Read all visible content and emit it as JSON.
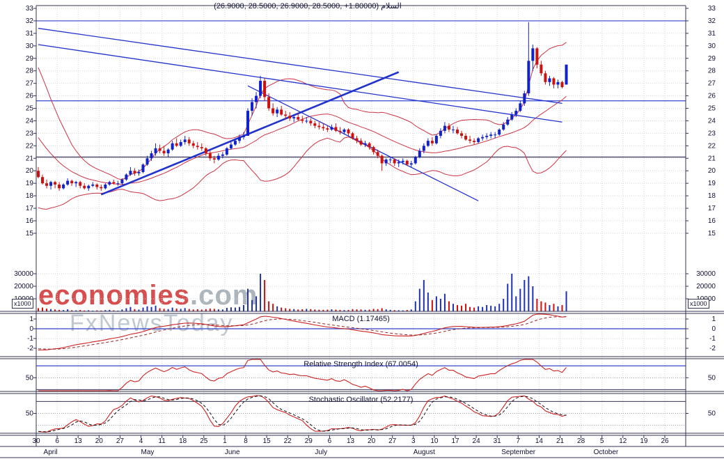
{
  "title": "(26.9000, 28.5000, 26.9000, 28.5000, +1.80000) السلام",
  "watermark": {
    "brand": "economies",
    "domain": ".com",
    "tagline": "FxNewsToday"
  },
  "panels": {
    "macd": {
      "title": "MACD (1.17465)"
    },
    "rsi": {
      "title": "Relative Strength Index (67.0054)"
    },
    "stochastic": {
      "title": "Stochastic Oscillator (52.2177)"
    }
  },
  "chart_data": {
    "type": "candlestick",
    "last_quote": {
      "open": 26.9,
      "high": 28.5,
      "low": 26.9,
      "close": 28.5,
      "change": "+1.80000"
    },
    "axes": {
      "price_ticks": [
        33,
        32,
        31,
        30,
        29,
        28,
        27,
        26,
        25,
        24,
        23,
        22,
        21,
        20,
        19,
        18,
        17,
        16,
        15
      ],
      "volume_ticks": [
        30000,
        20000,
        10000
      ],
      "volume_scale_label": "x1000",
      "macd_ticks": [
        1,
        0,
        -1,
        -2
      ],
      "rsi_mid_label": "50",
      "stoch_mid_label": "50",
      "week_labels": [
        "30",
        "6",
        "13",
        "20",
        "27",
        "4",
        "11",
        "18",
        "25",
        "1",
        "8",
        "15",
        "22",
        "29",
        "6",
        "13",
        "20",
        "27",
        "3",
        "10",
        "17",
        "24",
        "31",
        "7",
        "14",
        "21",
        "28",
        "5",
        "12",
        "19",
        "26"
      ],
      "months": [
        {
          "label": "April",
          "week": 0.35
        },
        {
          "label": "May",
          "week": 5.0
        },
        {
          "label": "June",
          "week": 9.0
        },
        {
          "label": "July",
          "week": 13.3
        },
        {
          "label": "August",
          "week": 18.0
        },
        {
          "label": "September",
          "week": 22.2
        },
        {
          "label": "October",
          "week": 26.6
        }
      ]
    },
    "levels": [
      {
        "price": 32.0,
        "color": "blue"
      },
      {
        "price": 25.6,
        "color": "blue"
      },
      {
        "price": 21.1,
        "color": "dark"
      }
    ],
    "trendlines": [
      {
        "i1": 0,
        "p1": 31.4,
        "i2": 125,
        "p2": 25.4,
        "width": 1.3
      },
      {
        "i1": 0,
        "p1": 30.1,
        "i2": 125,
        "p2": 23.9,
        "width": 1.3
      },
      {
        "i1": 50,
        "p1": 26.8,
        "i2": 105,
        "p2": 17.6,
        "width": 1.3
      },
      {
        "i1": 15,
        "p1": 18.1,
        "i2": 86,
        "p2": 27.9,
        "width": 2.6
      }
    ],
    "indicators": {
      "bollinger": {
        "period": 20,
        "stdev": 2
      },
      "macd": {
        "fast": 12,
        "slow": 26,
        "signal": 9,
        "value": 1.17465,
        "zero_line": 0,
        "dotted_levels": [
          1,
          -1,
          -2
        ]
      },
      "rsi": {
        "period": 14,
        "value": 67.0054,
        "blue_level": 70,
        "dotted_level": 50,
        "dark_level": 30
      },
      "stochastic": {
        "k_period": 14,
        "k_smooth": 3,
        "d_smooth": 3,
        "value": 52.2177,
        "dark_level": 80,
        "dotted_levels": [
          50,
          20
        ]
      }
    },
    "pre_closes": [
      29,
      28,
      27.5,
      27,
      26,
      25.5,
      24.5,
      24,
      23.5,
      22.5,
      22,
      21.5,
      21,
      20.6,
      20.3,
      20.1,
      20,
      19.9,
      19.9,
      19.8
    ],
    "ohlcv": [
      [
        20.0,
        20.3,
        19.4,
        19.5,
        2500
      ],
      [
        19.5,
        19.7,
        18.9,
        19.0,
        3000
      ],
      [
        19.0,
        19.3,
        18.6,
        18.8,
        2200
      ],
      [
        18.8,
        19.2,
        18.5,
        19.1,
        1800
      ],
      [
        19.1,
        19.2,
        18.6,
        18.9,
        1500
      ],
      [
        18.9,
        19.1,
        18.4,
        18.6,
        1200
      ],
      [
        18.6,
        19.0,
        18.5,
        18.9,
        1000
      ],
      [
        18.9,
        19.4,
        18.8,
        19.2,
        1600
      ],
      [
        19.2,
        19.3,
        18.8,
        19.0,
        900
      ],
      [
        19.0,
        19.2,
        18.7,
        19.1,
        800
      ],
      [
        19.1,
        19.2,
        18.6,
        18.8,
        1100
      ],
      [
        18.8,
        19.0,
        18.5,
        18.6,
        700
      ],
      [
        18.6,
        18.9,
        18.4,
        18.8,
        900
      ],
      [
        18.8,
        19.1,
        18.7,
        18.9,
        600
      ],
      [
        18.9,
        19.0,
        18.5,
        18.7,
        800
      ],
      [
        18.7,
        18.9,
        18.4,
        18.6,
        700
      ],
      [
        18.6,
        19.0,
        18.5,
        18.9,
        1000
      ],
      [
        18.9,
        19.2,
        18.8,
        19.1,
        1200
      ],
      [
        19.1,
        19.3,
        18.9,
        19.0,
        800
      ],
      [
        19.0,
        19.2,
        18.8,
        19.0,
        600
      ],
      [
        19.0,
        19.4,
        18.9,
        19.3,
        1500
      ],
      [
        19.3,
        19.8,
        19.2,
        19.7,
        2500
      ],
      [
        19.7,
        20.3,
        19.6,
        20.0,
        3500
      ],
      [
        20.0,
        20.2,
        19.6,
        19.8,
        1800
      ],
      [
        19.8,
        20.1,
        19.6,
        19.9,
        1400
      ],
      [
        19.9,
        20.6,
        19.8,
        20.5,
        3000
      ],
      [
        20.5,
        21.2,
        20.4,
        21.0,
        4000
      ],
      [
        21.0,
        21.6,
        20.8,
        21.4,
        3500
      ],
      [
        21.4,
        22.2,
        21.2,
        21.8,
        4500
      ],
      [
        21.8,
        22.1,
        21.4,
        21.6,
        2500
      ],
      [
        21.6,
        22.0,
        21.2,
        21.4,
        2000
      ],
      [
        21.4,
        21.8,
        21.1,
        21.7,
        1800
      ],
      [
        21.7,
        22.4,
        21.6,
        22.2,
        3000
      ],
      [
        22.2,
        22.6,
        21.9,
        22.0,
        2200
      ],
      [
        22.0,
        22.5,
        21.9,
        22.3,
        2000
      ],
      [
        22.3,
        22.8,
        22.1,
        22.5,
        2600
      ],
      [
        22.5,
        22.7,
        22.0,
        22.2,
        1900
      ],
      [
        22.2,
        22.4,
        21.8,
        22.0,
        1500
      ],
      [
        22.0,
        22.3,
        21.7,
        21.9,
        1700
      ],
      [
        21.9,
        22.2,
        21.6,
        21.8,
        1400
      ],
      [
        21.8,
        21.9,
        21.2,
        21.4,
        1800
      ],
      [
        21.4,
        21.6,
        20.8,
        21.0,
        2200
      ],
      [
        21.0,
        21.2,
        20.6,
        20.9,
        2000
      ],
      [
        20.9,
        21.4,
        20.8,
        21.2,
        1600
      ],
      [
        21.2,
        21.5,
        21.0,
        21.3,
        1500
      ],
      [
        21.3,
        21.9,
        21.2,
        21.8,
        2800
      ],
      [
        21.8,
        22.3,
        21.7,
        22.1,
        3200
      ],
      [
        22.1,
        22.6,
        22.0,
        22.4,
        3000
      ],
      [
        22.4,
        22.9,
        22.2,
        22.7,
        3500
      ],
      [
        22.7,
        23.1,
        22.5,
        22.8,
        5000
      ],
      [
        22.8,
        25.0,
        22.8,
        24.8,
        18000
      ],
      [
        24.8,
        25.8,
        24.4,
        25.5,
        9000
      ],
      [
        25.5,
        26.3,
        25.0,
        26.0,
        12000
      ],
      [
        26.0,
        27.6,
        25.8,
        27.2,
        30000
      ],
      [
        27.2,
        27.4,
        25.6,
        25.9,
        25000
      ],
      [
        25.9,
        26.2,
        24.8,
        25.0,
        8000
      ],
      [
        25.0,
        25.4,
        24.4,
        24.6,
        6000
      ],
      [
        24.6,
        25.1,
        24.3,
        24.9,
        4000
      ],
      [
        24.9,
        25.2,
        24.4,
        24.5,
        3000
      ],
      [
        24.5,
        24.8,
        24.1,
        24.4,
        2500
      ],
      [
        24.4,
        24.7,
        24.0,
        24.2,
        2000
      ],
      [
        24.2,
        24.5,
        23.9,
        24.3,
        1800
      ],
      [
        24.3,
        24.6,
        24.0,
        24.1,
        1500
      ],
      [
        24.1,
        24.4,
        23.8,
        24.0,
        1700
      ],
      [
        24.0,
        24.3,
        23.8,
        24.0,
        2000
      ],
      [
        24.0,
        24.2,
        23.6,
        23.8,
        1800
      ],
      [
        23.8,
        24.0,
        23.4,
        23.6,
        1500
      ],
      [
        23.6,
        23.9,
        23.3,
        23.5,
        1300
      ],
      [
        23.5,
        23.8,
        23.2,
        23.4,
        1200
      ],
      [
        23.4,
        23.6,
        23.1,
        23.3,
        1400
      ],
      [
        23.3,
        23.7,
        23.2,
        23.5,
        1600
      ],
      [
        23.5,
        23.8,
        23.1,
        23.2,
        1400
      ],
      [
        23.2,
        23.5,
        22.9,
        23.1,
        1200
      ],
      [
        23.1,
        23.4,
        22.9,
        23.3,
        1000
      ],
      [
        23.3,
        23.4,
        22.8,
        23.0,
        1100
      ],
      [
        23.0,
        23.1,
        22.5,
        22.6,
        1800
      ],
      [
        22.6,
        22.8,
        22.2,
        22.4,
        1600
      ],
      [
        22.4,
        22.6,
        22.0,
        22.1,
        1500
      ],
      [
        22.1,
        22.4,
        21.9,
        22.2,
        1200
      ],
      [
        22.2,
        22.3,
        21.7,
        21.9,
        1400
      ],
      [
        21.9,
        22.0,
        21.3,
        21.5,
        2000
      ],
      [
        21.5,
        21.7,
        21.0,
        21.2,
        1800
      ],
      [
        21.2,
        21.3,
        20.0,
        20.6,
        2500
      ],
      [
        20.6,
        21.0,
        20.4,
        20.9,
        1600
      ],
      [
        20.9,
        21.1,
        20.6,
        20.9,
        1200
      ],
      [
        20.9,
        21.0,
        20.4,
        20.6,
        1000
      ],
      [
        20.6,
        20.9,
        20.3,
        20.7,
        900
      ],
      [
        20.7,
        21.0,
        20.5,
        20.8,
        800
      ],
      [
        20.8,
        20.9,
        20.4,
        20.5,
        1100
      ],
      [
        20.5,
        20.8,
        20.3,
        20.6,
        1500
      ],
      [
        20.6,
        21.2,
        20.5,
        21.1,
        8000
      ],
      [
        21.1,
        21.8,
        21.0,
        21.6,
        18000
      ],
      [
        21.6,
        22.2,
        21.4,
        22.0,
        25000
      ],
      [
        22.0,
        22.6,
        21.9,
        22.4,
        15000
      ],
      [
        22.4,
        22.7,
        22.0,
        22.2,
        9000
      ],
      [
        22.2,
        22.9,
        22.1,
        22.8,
        12000
      ],
      [
        22.8,
        23.4,
        22.6,
        23.2,
        10000
      ],
      [
        23.2,
        23.9,
        23.0,
        23.6,
        14000
      ],
      [
        23.6,
        23.8,
        23.1,
        23.3,
        8000
      ],
      [
        23.3,
        23.6,
        23.0,
        23.3,
        6000
      ],
      [
        23.3,
        23.5,
        22.9,
        23.0,
        5000
      ],
      [
        23.0,
        23.2,
        22.6,
        22.8,
        4500
      ],
      [
        22.8,
        23.0,
        22.4,
        22.5,
        6000
      ],
      [
        22.5,
        22.8,
        22.2,
        22.4,
        3500
      ],
      [
        22.4,
        22.6,
        22.1,
        22.3,
        3000
      ],
      [
        22.3,
        22.7,
        22.2,
        22.6,
        4000
      ],
      [
        22.6,
        22.9,
        22.4,
        22.7,
        3500
      ],
      [
        22.7,
        23.0,
        22.5,
        22.8,
        5000
      ],
      [
        22.8,
        23.1,
        22.6,
        22.9,
        4500
      ],
      [
        22.9,
        23.1,
        22.6,
        22.9,
        4000
      ],
      [
        22.9,
        23.4,
        22.8,
        23.3,
        6000
      ],
      [
        23.3,
        23.9,
        23.2,
        23.7,
        10000
      ],
      [
        23.7,
        24.3,
        23.6,
        24.1,
        22000
      ],
      [
        24.1,
        24.7,
        24.0,
        24.5,
        30000
      ],
      [
        24.5,
        25.0,
        24.3,
        24.8,
        12000
      ],
      [
        24.8,
        25.6,
        24.7,
        25.4,
        18000
      ],
      [
        25.4,
        26.4,
        25.2,
        26.2,
        25000
      ],
      [
        26.2,
        31.9,
        26.0,
        28.8,
        28000
      ],
      [
        28.8,
        30.1,
        28.0,
        29.8,
        20000
      ],
      [
        29.8,
        29.9,
        28.2,
        28.5,
        10000
      ],
      [
        28.5,
        28.8,
        27.6,
        27.8,
        8000
      ],
      [
        27.8,
        28.0,
        26.9,
        27.1,
        7000
      ],
      [
        27.1,
        27.6,
        26.8,
        27.4,
        5000
      ],
      [
        27.4,
        27.5,
        26.6,
        26.9,
        6000
      ],
      [
        26.9,
        27.3,
        26.6,
        27.1,
        4000
      ],
      [
        27.1,
        27.2,
        26.6,
        26.7,
        5000
      ],
      [
        26.9,
        28.5,
        26.9,
        28.5,
        16000
      ]
    ],
    "colors": {
      "up": "#1122cc",
      "down": "#cc1111",
      "band": "#cc3344",
      "trend": "#2233cc",
      "level_blue": "#3344cc",
      "level_dark": "#333355",
      "macd_line": "#cc2222",
      "macd_signal": "#992222",
      "rsi_line": "#cc2222",
      "stoch_k": "#cc2222",
      "stoch_d": "#111111",
      "volume": "#2233aa",
      "grid": "#d6d6d6",
      "border": "#333355",
      "label": "#101033"
    }
  }
}
